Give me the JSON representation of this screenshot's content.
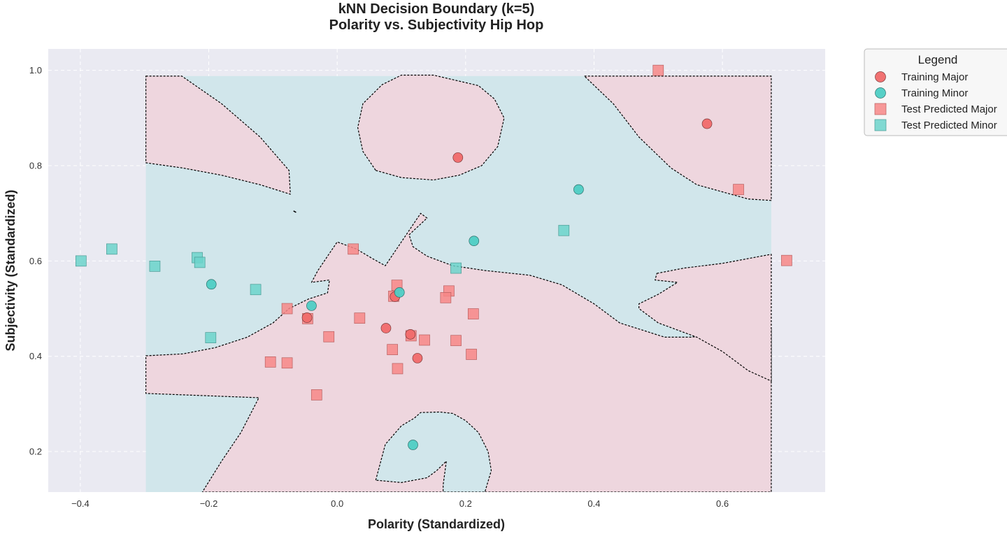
{
  "chart_data": {
    "type": "scatter",
    "title_lines": [
      "kNN Decision Boundary (k=5)",
      "Polarity vs. Subjectivity Hip Hop"
    ],
    "xlabel": "Polarity (Standardized)",
    "ylabel": "Subjectivity (Standardized)",
    "xlim": [
      -0.45,
      0.76
    ],
    "ylim": [
      0.115,
      1.045
    ],
    "xticks": [
      -0.4,
      -0.2,
      0.0,
      0.2,
      0.4,
      0.6
    ],
    "xtick_labels": [
      "−0.4",
      "−0.2",
      "0.0",
      "0.2",
      "0.4",
      "0.6"
    ],
    "yticks": [
      0.2,
      0.4,
      0.6,
      0.8,
      1.0
    ],
    "ytick_labels": [
      "0.2",
      "0.4",
      "0.6",
      "0.8",
      "1.0"
    ],
    "grid": true,
    "colors": {
      "major": "#f06a6a",
      "minor": "#4ecdc4",
      "test_major": "#f78787",
      "test_minor": "#6cd3cb",
      "region_major": "#eed6de",
      "region_minor": "#d1e6eb",
      "plot_bg": "#eaeaf2",
      "boundary": "#000000"
    },
    "decision_region": {
      "x_range": [
        -0.298,
        0.676
      ],
      "y_range": [
        0.115,
        0.988
      ],
      "background_class": "Training Minor",
      "major_regions": [
        [
          [
            -0.298,
            0.988
          ],
          [
            -0.242,
            0.988
          ],
          [
            -0.18,
            0.93
          ],
          [
            -0.12,
            0.86
          ],
          [
            -0.075,
            0.79
          ],
          [
            -0.073,
            0.74
          ],
          [
            -0.12,
            0.76
          ],
          [
            -0.18,
            0.78
          ],
          [
            -0.24,
            0.795
          ],
          [
            -0.298,
            0.806
          ]
        ],
        [
          [
            0.06,
            0.79
          ],
          [
            0.1,
            0.775
          ],
          [
            0.15,
            0.77
          ],
          [
            0.19,
            0.78
          ],
          [
            0.225,
            0.8
          ],
          [
            0.25,
            0.84
          ],
          [
            0.26,
            0.9
          ],
          [
            0.245,
            0.94
          ],
          [
            0.22,
            0.968
          ],
          [
            0.15,
            0.99
          ],
          [
            0.1,
            0.99
          ],
          [
            0.07,
            0.97
          ],
          [
            0.04,
            0.93
          ],
          [
            0.032,
            0.88
          ],
          [
            0.04,
            0.83
          ]
        ],
        [
          [
            0.385,
            0.988
          ],
          [
            0.676,
            0.988
          ],
          [
            0.676,
            0.727
          ],
          [
            0.64,
            0.73
          ],
          [
            0.6,
            0.745
          ],
          [
            0.56,
            0.76
          ],
          [
            0.52,
            0.795
          ],
          [
            0.47,
            0.86
          ],
          [
            0.43,
            0.93
          ]
        ],
        [
          [
            -0.298,
            0.401
          ],
          [
            -0.24,
            0.405
          ],
          [
            -0.19,
            0.418
          ],
          [
            -0.14,
            0.44
          ],
          [
            -0.1,
            0.47
          ],
          [
            -0.075,
            0.5
          ],
          [
            -0.045,
            0.52
          ],
          [
            -0.015,
            0.533
          ],
          [
            -0.012,
            0.56
          ],
          [
            -0.04,
            0.555
          ],
          [
            -0.03,
            0.58
          ],
          [
            0.0,
            0.64
          ],
          [
            0.03,
            0.625
          ],
          [
            0.055,
            0.605
          ],
          [
            0.075,
            0.59
          ],
          [
            0.085,
            0.61
          ],
          [
            0.1,
            0.64
          ],
          [
            0.12,
            0.68
          ],
          [
            0.13,
            0.7
          ],
          [
            0.14,
            0.69
          ],
          [
            0.112,
            0.655
          ],
          [
            0.118,
            0.63
          ],
          [
            0.14,
            0.61
          ],
          [
            0.18,
            0.59
          ],
          [
            0.23,
            0.58
          ],
          [
            0.3,
            0.57
          ],
          [
            0.35,
            0.55
          ],
          [
            0.4,
            0.51
          ],
          [
            0.44,
            0.47
          ],
          [
            0.51,
            0.44
          ],
          [
            0.55,
            0.44
          ],
          [
            0.59,
            0.445
          ],
          [
            0.63,
            0.45
          ],
          [
            0.676,
            0.46
          ],
          [
            0.676,
            0.115
          ],
          [
            -0.21,
            0.115
          ],
          [
            -0.18,
            0.18
          ],
          [
            -0.15,
            0.24
          ],
          [
            -0.122,
            0.313
          ],
          [
            -0.298,
            0.322
          ]
        ],
        [
          [
            0.498,
            0.574
          ],
          [
            0.54,
            0.585
          ],
          [
            0.6,
            0.595
          ],
          [
            0.676,
            0.614
          ],
          [
            0.676,
            0.348
          ],
          [
            0.64,
            0.37
          ],
          [
            0.6,
            0.41
          ],
          [
            0.56,
            0.44
          ],
          [
            0.5,
            0.47
          ],
          [
            0.47,
            0.5
          ],
          [
            0.47,
            0.51
          ],
          [
            0.5,
            0.53
          ],
          [
            0.53,
            0.555
          ],
          [
            0.495,
            0.56
          ]
        ]
      ],
      "minor_islands": [
        [
          [
            0.06,
            0.14
          ],
          [
            0.075,
            0.215
          ],
          [
            0.1,
            0.254
          ],
          [
            0.12,
            0.27
          ],
          [
            0.13,
            0.282
          ],
          [
            0.16,
            0.283
          ],
          [
            0.18,
            0.28
          ],
          [
            0.2,
            0.265
          ],
          [
            0.22,
            0.24
          ],
          [
            0.235,
            0.2
          ],
          [
            0.24,
            0.16
          ],
          [
            0.23,
            0.115
          ],
          [
            0.165,
            0.115
          ],
          [
            0.165,
            0.13
          ],
          [
            0.17,
            0.18
          ],
          [
            0.155,
            0.16
          ],
          [
            0.14,
            0.145
          ],
          [
            0.1,
            0.135
          ]
        ]
      ],
      "boundary_line": [
        [
          -0.068,
          0.705
        ],
        [
          -0.064,
          0.702
        ]
      ]
    },
    "series": [
      {
        "name": "Training Major",
        "marker": "circle",
        "points": [
          [
            0.188,
            0.817
          ],
          [
            0.576,
            0.888
          ],
          [
            -0.047,
            0.481
          ],
          [
            0.076,
            0.459
          ],
          [
            0.114,
            0.446
          ],
          [
            0.125,
            0.396
          ],
          [
            0.09,
            0.525
          ]
        ]
      },
      {
        "name": "Training Minor",
        "marker": "circle",
        "points": [
          [
            0.376,
            0.75
          ],
          [
            0.213,
            0.642
          ],
          [
            -0.196,
            0.551
          ],
          [
            -0.04,
            0.506
          ],
          [
            0.118,
            0.214
          ],
          [
            0.097,
            0.534
          ]
        ]
      },
      {
        "name": "Test Predicted Major",
        "marker": "square",
        "points": [
          [
            0.5,
            1.0
          ],
          [
            0.625,
            0.75
          ],
          [
            0.7,
            0.601
          ],
          [
            0.025,
            0.625
          ],
          [
            0.093,
            0.549
          ],
          [
            0.174,
            0.537
          ],
          [
            0.169,
            0.523
          ],
          [
            0.088,
            0.526
          ],
          [
            0.212,
            0.489
          ],
          [
            -0.078,
            0.5
          ],
          [
            -0.046,
            0.479
          ],
          [
            0.035,
            0.48
          ],
          [
            -0.013,
            0.441
          ],
          [
            0.115,
            0.443
          ],
          [
            0.136,
            0.434
          ],
          [
            0.185,
            0.433
          ],
          [
            0.086,
            0.414
          ],
          [
            0.209,
            0.404
          ],
          [
            -0.104,
            0.388
          ],
          [
            -0.078,
            0.386
          ],
          [
            0.094,
            0.374
          ],
          [
            -0.032,
            0.319
          ]
        ]
      },
      {
        "name": "Test Predicted Minor",
        "marker": "square",
        "points": [
          [
            -0.399,
            0.6
          ],
          [
            -0.351,
            0.625
          ],
          [
            -0.284,
            0.589
          ],
          [
            -0.218,
            0.607
          ],
          [
            -0.214,
            0.597
          ],
          [
            -0.127,
            0.54
          ],
          [
            -0.197,
            0.439
          ],
          [
            0.185,
            0.585
          ],
          [
            0.353,
            0.664
          ]
        ]
      }
    ],
    "legend": {
      "title": "Legend",
      "placement": "outside-top-right",
      "entries": [
        "Training Major",
        "Training Minor",
        "Test Predicted Major",
        "Test Predicted Minor"
      ]
    }
  }
}
